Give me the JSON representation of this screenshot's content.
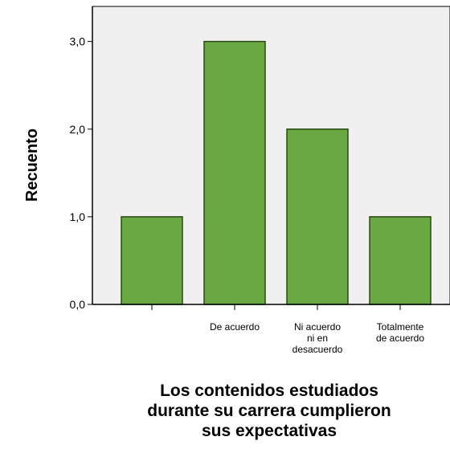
{
  "chart_data": {
    "type": "bar",
    "categories": [
      "",
      "De acuerdo",
      "Ni acuerdo ni en desacuerdo",
      "Totalmente de acuerdo"
    ],
    "category_label_lines": [
      [
        ""
      ],
      [
        "De acuerdo"
      ],
      [
        "Ni acuerdo",
        "ni en",
        "desacuerdo"
      ],
      [
        "Totalmente",
        "de acuerdo"
      ]
    ],
    "values": [
      1,
      3,
      2,
      1
    ],
    "title": "",
    "xlabel": "Los contenidos estudiados durante su carrera cumplieron sus expectativas",
    "xlabel_lines": [
      "Los contenidos estudiados",
      "durante su carrera cumplieron",
      "sus expectativas"
    ],
    "ylabel": "Recuento",
    "ylim": [
      0,
      3.4
    ],
    "yticks": [
      0,
      1,
      2,
      3
    ],
    "ytick_labels": [
      "0,0",
      "1,0",
      "2,0",
      "3,0"
    ],
    "grid": false,
    "legend": "none",
    "bar_color": "#6aa844",
    "bar_edge_color": "#2b4a12",
    "plot_background": "#f0f0f0"
  }
}
